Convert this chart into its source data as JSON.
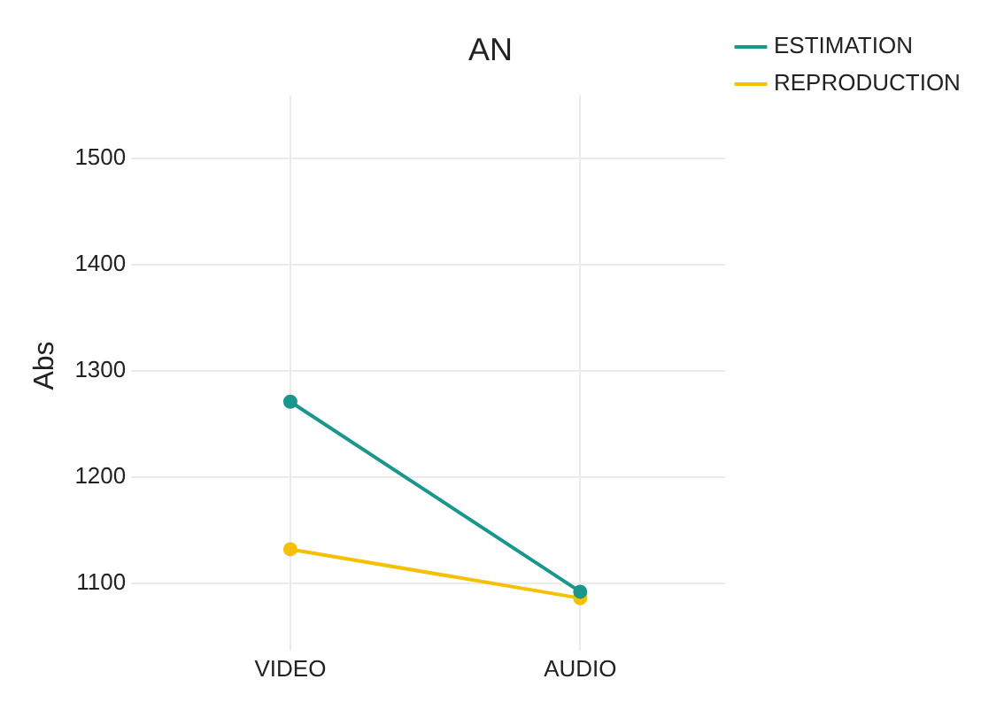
{
  "chart_data": {
    "type": "line",
    "title": "AN",
    "ylabel": "Abs",
    "categories": [
      "VIDEO",
      "AUDIO"
    ],
    "series": [
      {
        "name": "ESTIMATION",
        "color": "#1a968c",
        "values": [
          1271,
          1092
        ]
      },
      {
        "name": "REPRODUCTION",
        "color": "#f5c000",
        "values": [
          1132,
          1086
        ]
      }
    ],
    "ylim": [
      1050,
      1560
    ],
    "yticks": [
      1100,
      1200,
      1300,
      1400,
      1500
    ],
    "grid": true,
    "legend": "top right",
    "marker": "circle",
    "line_style": "solid"
  }
}
